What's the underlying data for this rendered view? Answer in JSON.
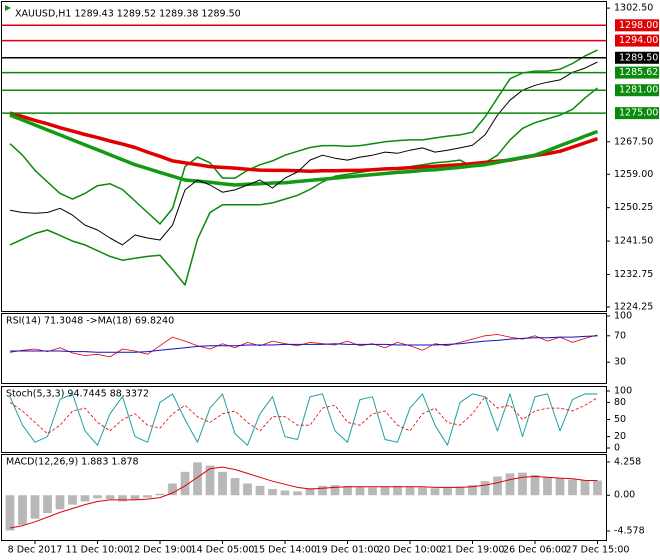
{
  "chart_data": [
    {
      "type": "combo",
      "title": "XAUUSD,H1  1289.43 1289.52 1289.38 1289.50",
      "ylim": [
        1223.2,
        1304.1
      ],
      "yticks": [
        {
          "value": 1302.5,
          "label": "1302.50"
        },
        {
          "value": 1267.5,
          "label": "1267.50"
        },
        {
          "value": 1259,
          "label": "1259.00"
        },
        {
          "value": 1250.25,
          "label": "1250.25"
        },
        {
          "value": 1241.5,
          "label": "1241.50"
        },
        {
          "value": 1232.75,
          "label": "1232.75"
        },
        {
          "value": 1224.25,
          "label": "1224.25"
        }
      ],
      "levels": [
        {
          "value": 1298,
          "label": "1298.00",
          "color": "#e00000"
        },
        {
          "value": 1294,
          "label": "1294.00",
          "color": "#e00000"
        },
        {
          "value": 1285.62,
          "label": "1285.62",
          "color": "#0a8a0a"
        },
        {
          "value": 1281,
          "label": "1281.00",
          "color": "#0a8a0a"
        },
        {
          "value": 1275,
          "label": "1275.00",
          "color": "#0a8a0a"
        },
        {
          "value": 1289.5,
          "label": "1289.50",
          "color": "#000000"
        }
      ],
      "series": [
        {
          "type": "line",
          "color": "#0a8a0a",
          "width": 1.5,
          "values": [
            1267,
            1264,
            1260,
            1257,
            1254,
            1252.5,
            1254,
            1256,
            1256.5,
            1255,
            1252,
            1249,
            1246,
            1250,
            1261,
            1263.5,
            1262,
            1258,
            1258,
            1260,
            1261.5,
            1262.5,
            1264,
            1265,
            1266,
            1266.5,
            1266.5,
            1266.3,
            1266.5,
            1267,
            1267.5,
            1267.8,
            1268,
            1268,
            1268.5,
            1269,
            1269.3,
            1270,
            1274,
            1279,
            1284,
            1285.5,
            1286,
            1286,
            1286.5,
            1288,
            1290,
            1291.5
          ]
        },
        {
          "type": "line",
          "color": "#0a8a0a",
          "width": 1.5,
          "values": [
            1240.5,
            1242,
            1243.5,
            1244.4,
            1243,
            1241.5,
            1240.5,
            1239,
            1237.5,
            1236.5,
            1237,
            1237.5,
            1237.8,
            1234,
            1230,
            1242,
            1249,
            1251,
            1251,
            1251,
            1251,
            1251.5,
            1252.5,
            1253.5,
            1255,
            1257,
            1258.5,
            1259,
            1259.5,
            1260,
            1260.3,
            1260.6,
            1261,
            1261.5,
            1262,
            1262.3,
            1262.7,
            1261,
            1262,
            1264,
            1268,
            1271,
            1272.5,
            1273.5,
            1274.5,
            1276,
            1279,
            1281.6
          ]
        },
        {
          "type": "line",
          "color": "#e00000",
          "width": 3.5,
          "values": [
            1275.0,
            1274.1,
            1273.1,
            1272.2,
            1271.2,
            1270.3,
            1269.4,
            1268.6,
            1267.7,
            1266.9,
            1266.0,
            1264.8,
            1263.7,
            1262.5,
            1262.0,
            1261.5,
            1261.0,
            1260.8,
            1260.6,
            1260.3,
            1260.1,
            1260.0,
            1260.0,
            1259.9,
            1259.8,
            1259.9,
            1259.9,
            1260.0,
            1260.0,
            1260.2,
            1260.4,
            1260.5,
            1260.7,
            1260.9,
            1261.1,
            1261.3,
            1261.5,
            1261.8,
            1262.1,
            1262.4,
            1262.7,
            1263.3,
            1263.9,
            1264.4,
            1265.0,
            1266.1,
            1267.2,
            1268.3
          ]
        },
        {
          "type": "line",
          "color": "#129a12",
          "width": 3.5,
          "values": [
            1274.5,
            1273.2,
            1271.9,
            1270.6,
            1269.3,
            1268.0,
            1266.7,
            1265.4,
            1264.1,
            1262.8,
            1261.5,
            1260.5,
            1259.5,
            1258.5,
            1257.5,
            1257.2,
            1256.9,
            1256.5,
            1256.2,
            1256.4,
            1256.5,
            1256.7,
            1256.8,
            1257.1,
            1257.4,
            1257.7,
            1258.0,
            1258.3,
            1258.6,
            1258.9,
            1259.2,
            1259.5,
            1259.7,
            1260.0,
            1260.2,
            1260.5,
            1260.8,
            1261.2,
            1261.5,
            1262.1,
            1262.8,
            1263.4,
            1264.0,
            1265.2,
            1266.5,
            1267.7,
            1269.0,
            1270.2
          ]
        },
        {
          "type": "line",
          "color": "#000000",
          "width": 1,
          "values": [
            1249.6,
            1249,
            1248.8,
            1249,
            1250.1,
            1248.3,
            1245.7,
            1244.4,
            1242.3,
            1240.5,
            1243.1,
            1242.3,
            1241.8,
            1245.7,
            1254.9,
            1257.5,
            1256.2,
            1254.3,
            1254.9,
            1256.2,
            1257.5,
            1255.4,
            1258,
            1259.6,
            1262.7,
            1264,
            1263.2,
            1262.7,
            1263.5,
            1264,
            1264.8,
            1264.5,
            1265.3,
            1265.9,
            1264.8,
            1265.3,
            1265.9,
            1266.6,
            1269.3,
            1274.5,
            1278.4,
            1281,
            1282.3,
            1283.1,
            1283.7,
            1285.7,
            1286.8,
            1288.4
          ]
        }
      ]
    },
    {
      "type": "combo",
      "title": "RSI(14) 71.3048 ->MA(18) 69.8240",
      "ylim": [
        -3,
        104.5
      ],
      "yticks": [
        100,
        70,
        30
      ],
      "series": [
        {
          "type": "line",
          "color": "#e00000",
          "width": 0.8,
          "values": [
            45,
            48,
            50,
            46,
            52,
            44,
            40,
            42,
            38,
            50,
            47,
            42,
            55,
            68,
            62,
            55,
            50,
            58,
            52,
            60,
            55,
            62,
            58,
            55,
            60,
            58,
            56,
            62,
            55,
            58,
            52,
            60,
            55,
            48,
            58,
            55,
            60,
            65,
            70,
            72,
            68,
            65,
            70,
            62,
            68,
            60,
            66,
            71.3
          ]
        },
        {
          "type": "line",
          "color": "#1010c0",
          "width": 1,
          "values": [
            47,
            47,
            47,
            47,
            47,
            46,
            46,
            45,
            45,
            45,
            45,
            46,
            48,
            50,
            52,
            54,
            55,
            55,
            55,
            56,
            56,
            56,
            57,
            57,
            57,
            57,
            58,
            57,
            57,
            57,
            57,
            56,
            56,
            56,
            56,
            57,
            58,
            60,
            62,
            63,
            65,
            66,
            67,
            67,
            68,
            68,
            69,
            69.8
          ]
        }
      ]
    },
    {
      "type": "combo",
      "title": "Stoch(5,3,3) 94.7445 88.3372",
      "ylim": [
        -7,
        108.8
      ],
      "yticks": [
        100,
        80,
        50,
        20,
        0
      ],
      "series": [
        {
          "type": "line",
          "color": "#20a0a0",
          "width": 1,
          "values": [
            90,
            40,
            10,
            20,
            85,
            95,
            30,
            5,
            60,
            90,
            20,
            10,
            80,
            95,
            50,
            10,
            70,
            95,
            25,
            5,
            60,
            90,
            20,
            15,
            90,
            95,
            30,
            10,
            85,
            90,
            15,
            10,
            70,
            95,
            40,
            5,
            80,
            95,
            90,
            30,
            95,
            20,
            90,
            95,
            30,
            85,
            95,
            94.7
          ]
        },
        {
          "type": "line",
          "color": "#e00000",
          "width": 0.8,
          "dash": true,
          "values": [
            80,
            65,
            45,
            25,
            40,
            65,
            70,
            45,
            30,
            50,
            60,
            40,
            35,
            60,
            75,
            55,
            45,
            60,
            65,
            45,
            30,
            55,
            55,
            40,
            40,
            70,
            75,
            45,
            40,
            60,
            65,
            40,
            30,
            60,
            70,
            45,
            40,
            60,
            90,
            70,
            75,
            50,
            65,
            70,
            70,
            65,
            75,
            88.3
          ]
        }
      ]
    },
    {
      "type": "combo",
      "title": "MACD(12,26,9) 1.883 1.878",
      "ylim": [
        -5.73,
        5.28
      ],
      "yticks": [
        4.258,
        {
          "value": 0,
          "label": "0.00"
        },
        -4.578
      ],
      "categories": [
        null,
        null,
        "8 Dec 2017",
        null,
        null,
        null,
        null,
        "11 Dec 10:00",
        null,
        null,
        null,
        null,
        "12 Dec 19:00",
        null,
        null,
        null,
        null,
        "14 Dec 05:00",
        null,
        null,
        null,
        null,
        "15 Dec 14:00",
        null,
        null,
        null,
        null,
        "19 Dec 01:00",
        null,
        null,
        null,
        null,
        "20 Dec 10:00",
        null,
        null,
        null,
        null,
        "21 Dec 19:00",
        null,
        null,
        null,
        null,
        "26 Dec 06:00",
        null,
        null,
        null,
        null,
        "27 Dec 15:00"
      ],
      "series": [
        {
          "type": "bar",
          "color": "#b8b8b8",
          "values": [
            -4.5,
            -3.8,
            -3,
            -2.3,
            -1.8,
            -1.2,
            -0.8,
            -0.4,
            -0.5,
            -0.8,
            -0.6,
            -0.3,
            0.2,
            1.5,
            3,
            4.2,
            3.8,
            3,
            2.2,
            1.5,
            1.2,
            0.8,
            0.6,
            0.5,
            0.9,
            1.2,
            1.3,
            1.2,
            1.1,
            1,
            1.1,
            1.2,
            1.1,
            1,
            0.9,
            1,
            1.1,
            1.3,
            1.8,
            2.4,
            2.8,
            2.9,
            2.6,
            2.3,
            2.2,
            2,
            1.9,
            1.883
          ]
        },
        {
          "type": "line",
          "color": "#e00000",
          "width": 1,
          "values": [
            -4.2,
            -3.9,
            -3.4,
            -2.8,
            -2.2,
            -1.7,
            -1.2,
            -0.8,
            -0.6,
            -0.6,
            -0.6,
            -0.5,
            -0.3,
            0.3,
            1.2,
            2.3,
            3.4,
            3.6,
            3.3,
            2.8,
            2.3,
            1.8,
            1.4,
            1.0,
            0.8,
            0.9,
            1.0,
            1.1,
            1.1,
            1.1,
            1.1,
            1.1,
            1.1,
            1.1,
            1.0,
            1.0,
            1.0,
            1.1,
            1.3,
            1.6,
            2.0,
            2.3,
            2.4,
            2.3,
            2.2,
            2.1,
            1.9,
            1.878
          ]
        }
      ]
    }
  ]
}
